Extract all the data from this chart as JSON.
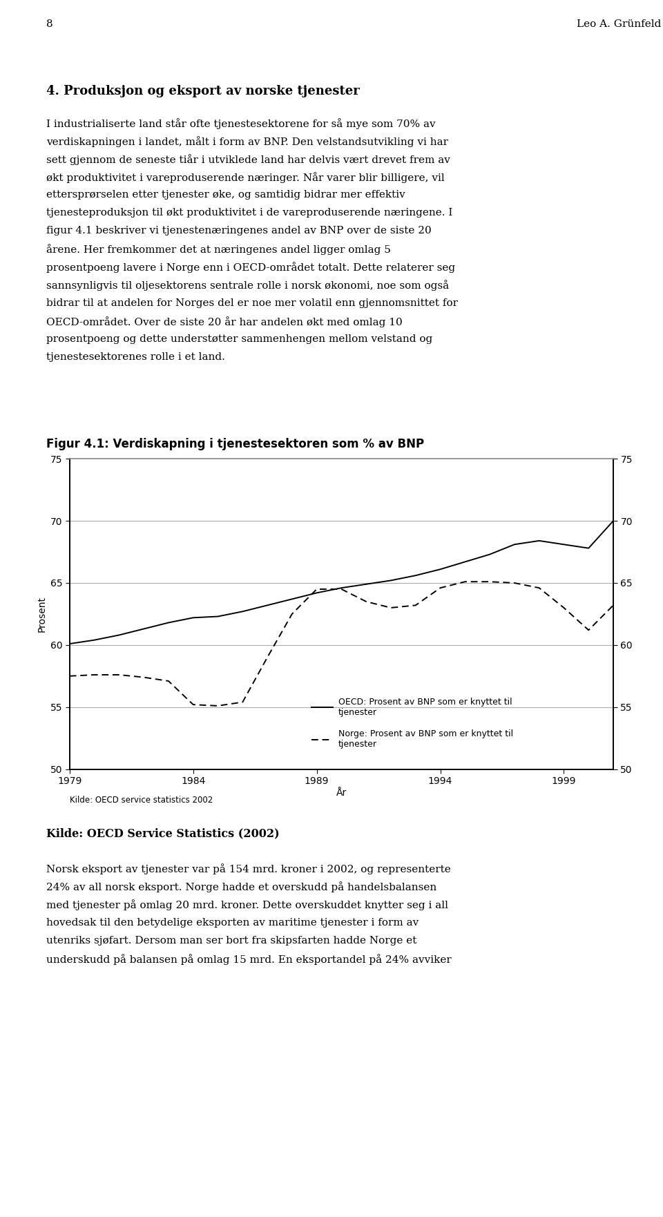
{
  "page_num": "8",
  "page_author": "Leo A. Grünfeld",
  "section_title": "4. Produksjon og eksport av norske tjenester",
  "body_text_above": [
    "I industrialiserte land står ofte tjenestesektorene for så mye som 70% av",
    "verdiskapningen i landet, målt i form av BNP. Den velstandsutvikling vi har",
    "sett gjennom de seneste tiår i utviklede land har delvis vært drevet frem av",
    "økt produktivitet i vareproduserende næringer. Når varer blir billigere, vil",
    "ettersprørselen etter tjenester øke, og samtidig bidrar mer effektiv",
    "tjenesteproduksjon til økt produktivitet i de vareproduserende næringene. I",
    "figur 4.1 beskriver vi tjenestenæringenes andel av BNP over de siste 20",
    "årene. Her fremkommer det at næringenes andel ligger omlag 5",
    "prosentpoeng lavere i Norge enn i OECD-området totalt. Dette relaterer seg",
    "sannsynligvis til oljesektorens sentrale rolle i norsk økonomi, noe som også",
    "bidrar til at andelen for Norges del er noe mer volatil enn gjennomsnittet for",
    "OECD-området. Over de siste 20 år har andelen økt med omlag 10",
    "prosentpoeng og dette understøtter sammenhengen mellom velstand og",
    "tjenestesektorenes rolle i et land."
  ],
  "fig_title": "Figur 4.1: Verdiskapning i tjenestesektoren som % av BNP",
  "ylabel": "Prosent",
  "xlabel": "År",
  "source_text": "Kilde: OECD service statistics 2002",
  "ylim": [
    50,
    75
  ],
  "xlim": [
    1979,
    2001
  ],
  "yticks": [
    50,
    55,
    60,
    65,
    70,
    75
  ],
  "xticks": [
    1979,
    1984,
    1989,
    1994,
    1999
  ],
  "legend_oecd": "OECD: Prosent av BNP som er knyttet til\ntjenester",
  "legend_norge": "Norge: Prosent av BNP som er knyttet til\ntjenester",
  "oecd_years": [
    1979,
    1980,
    1981,
    1982,
    1983,
    1984,
    1985,
    1986,
    1987,
    1988,
    1989,
    1990,
    1991,
    1992,
    1993,
    1994,
    1995,
    1996,
    1997,
    1998,
    1999,
    2000,
    2001
  ],
  "oecd_values": [
    60.1,
    60.4,
    60.8,
    61.3,
    61.8,
    62.2,
    62.3,
    62.7,
    63.2,
    63.7,
    64.2,
    64.6,
    64.9,
    65.2,
    65.6,
    66.1,
    66.7,
    67.3,
    68.1,
    68.4,
    68.1,
    67.8,
    70.0
  ],
  "norge_years": [
    1979,
    1980,
    1981,
    1982,
    1983,
    1984,
    1985,
    1986,
    1987,
    1988,
    1989,
    1990,
    1991,
    1992,
    1993,
    1994,
    1995,
    1996,
    1997,
    1998,
    1999,
    2000,
    2001
  ],
  "norge_values": [
    57.5,
    57.6,
    57.6,
    57.4,
    57.1,
    55.2,
    55.1,
    55.4,
    59.0,
    62.5,
    64.5,
    64.5,
    63.5,
    63.0,
    63.2,
    64.6,
    65.1,
    65.1,
    65.0,
    64.6,
    63.0,
    61.2,
    63.2
  ],
  "line_color": "#000000",
  "background_color": "#ffffff",
  "grid_color": "#aaaaaa",
  "below_lines": [
    "Kilde: OECD Service Statistics (2002)",
    "",
    "Norsk eksport av tjenester var på 154 mrd. kroner i 2002, og representerte",
    "24% av all norsk eksport. Norge hadde et overskudd på handelsbalansen",
    "med tjenester på omlag 20 mrd. kroner. Dette overskuddet knytter seg i all",
    "hovedsak til den betydelige eksporten av maritime tjenester i form av",
    "utenriks sjøfart. Dersom man ser bort fra skipsfarten hadde Norge et",
    "underskudd på balansen på omlag 15 mrd. En eksportandel på 24% avviker"
  ]
}
